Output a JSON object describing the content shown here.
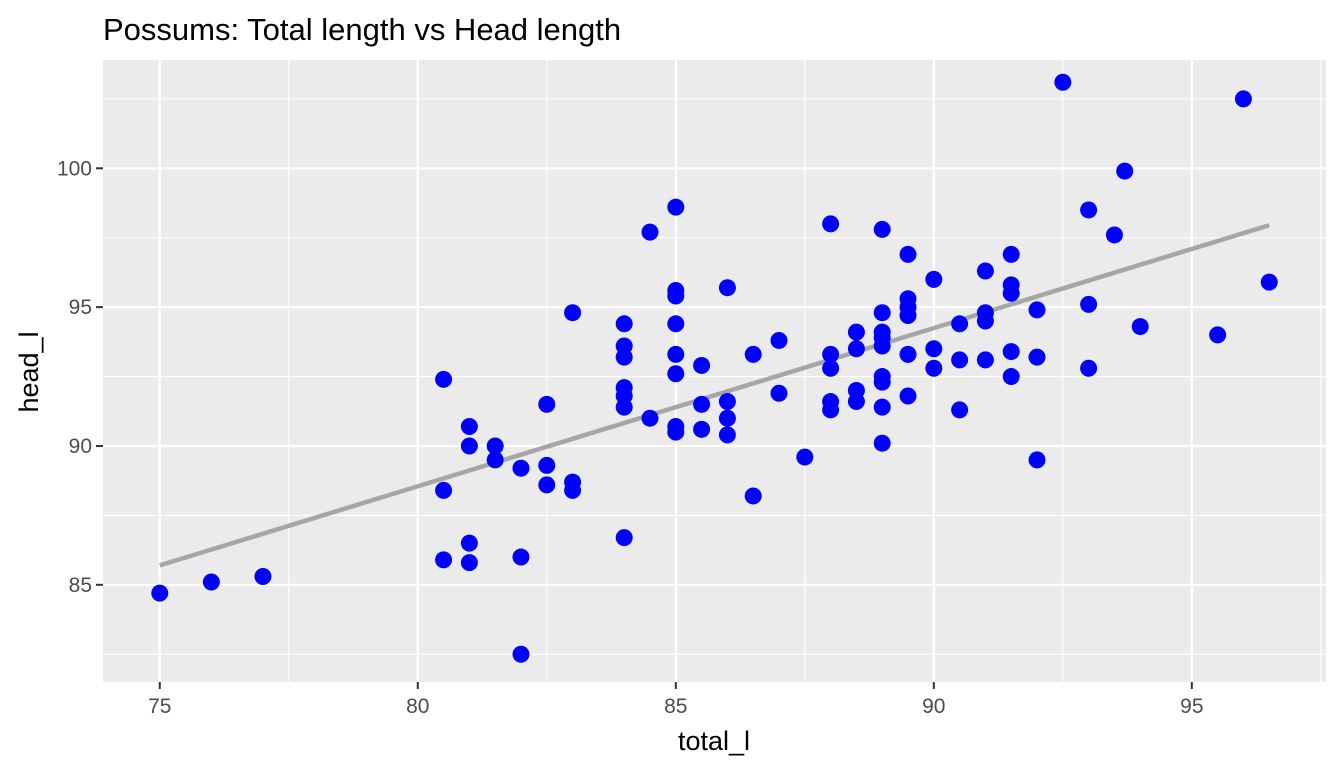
{
  "chart_data": {
    "type": "scatter",
    "title": "Possums: Total length vs Head length",
    "xlabel": "total_l",
    "ylabel": "head_l",
    "xlim": [
      73.9,
      97.6
    ],
    "ylim": [
      81.5,
      103.9
    ],
    "xticks": [
      75,
      80,
      85,
      90,
      95
    ],
    "yticks": [
      85,
      90,
      95,
      100
    ],
    "xtick_labels": [
      "75",
      "80",
      "85",
      "90",
      "95"
    ],
    "ytick_labels": [
      "85",
      "90",
      "95",
      "100"
    ],
    "grid": true,
    "legend": "none",
    "colors": {
      "panel_background": "#ebebeb",
      "grid": "#ffffff",
      "point": "#0000ff",
      "trend_line": "#a6a6a6"
    },
    "series": [
      {
        "values": [
          {
            "x": 75,
            "y": 84.7
          },
          {
            "x": 76,
            "y": 85.1
          },
          {
            "x": 77,
            "y": 85.3
          },
          {
            "x": 80.5,
            "y": 92.4
          },
          {
            "x": 80.5,
            "y": 88.4
          },
          {
            "x": 80.5,
            "y": 85.9
          },
          {
            "x": 81,
            "y": 90.7
          },
          {
            "x": 81,
            "y": 90.0
          },
          {
            "x": 81,
            "y": 86.5
          },
          {
            "x": 81,
            "y": 85.8
          },
          {
            "x": 81.5,
            "y": 90.0
          },
          {
            "x": 81.5,
            "y": 89.5
          },
          {
            "x": 82,
            "y": 89.2
          },
          {
            "x": 82,
            "y": 86.0
          },
          {
            "x": 82,
            "y": 82.5
          },
          {
            "x": 82.5,
            "y": 91.5
          },
          {
            "x": 82.5,
            "y": 89.3
          },
          {
            "x": 82.5,
            "y": 88.6
          },
          {
            "x": 83,
            "y": 94.8
          },
          {
            "x": 83,
            "y": 88.7
          },
          {
            "x": 83,
            "y": 88.4
          },
          {
            "x": 84,
            "y": 94.4
          },
          {
            "x": 84,
            "y": 93.6
          },
          {
            "x": 84,
            "y": 93.2
          },
          {
            "x": 84,
            "y": 92.1
          },
          {
            "x": 84,
            "y": 91.8
          },
          {
            "x": 84,
            "y": 91.4
          },
          {
            "x": 84,
            "y": 86.7
          },
          {
            "x": 84.5,
            "y": 97.7
          },
          {
            "x": 84.5,
            "y": 91.0
          },
          {
            "x": 85,
            "y": 98.6
          },
          {
            "x": 85,
            "y": 95.6
          },
          {
            "x": 85,
            "y": 95.4
          },
          {
            "x": 85,
            "y": 94.4
          },
          {
            "x": 85,
            "y": 93.3
          },
          {
            "x": 85,
            "y": 92.6
          },
          {
            "x": 85,
            "y": 90.7
          },
          {
            "x": 85,
            "y": 90.5
          },
          {
            "x": 85.5,
            "y": 92.9
          },
          {
            "x": 85.5,
            "y": 91.5
          },
          {
            "x": 85.5,
            "y": 90.6
          },
          {
            "x": 86,
            "y": 95.7
          },
          {
            "x": 86,
            "y": 91.6
          },
          {
            "x": 86,
            "y": 91.0
          },
          {
            "x": 86,
            "y": 90.4
          },
          {
            "x": 86.5,
            "y": 93.3
          },
          {
            "x": 86.5,
            "y": 88.2
          },
          {
            "x": 87,
            "y": 93.8
          },
          {
            "x": 87,
            "y": 91.9
          },
          {
            "x": 87.5,
            "y": 89.6
          },
          {
            "x": 88,
            "y": 98.0
          },
          {
            "x": 88,
            "y": 93.3
          },
          {
            "x": 88,
            "y": 92.8
          },
          {
            "x": 88,
            "y": 91.6
          },
          {
            "x": 88,
            "y": 91.3
          },
          {
            "x": 88.5,
            "y": 94.1
          },
          {
            "x": 88.5,
            "y": 93.5
          },
          {
            "x": 88.5,
            "y": 92.0
          },
          {
            "x": 88.5,
            "y": 91.6
          },
          {
            "x": 89,
            "y": 97.8
          },
          {
            "x": 89,
            "y": 94.8
          },
          {
            "x": 89,
            "y": 94.1
          },
          {
            "x": 89,
            "y": 93.9
          },
          {
            "x": 89,
            "y": 93.6
          },
          {
            "x": 89,
            "y": 92.5
          },
          {
            "x": 89,
            "y": 92.3
          },
          {
            "x": 89,
            "y": 91.4
          },
          {
            "x": 89,
            "y": 90.1
          },
          {
            "x": 89.5,
            "y": 96.9
          },
          {
            "x": 89.5,
            "y": 95.3
          },
          {
            "x": 89.5,
            "y": 95.0
          },
          {
            "x": 89.5,
            "y": 94.7
          },
          {
            "x": 89.5,
            "y": 93.3
          },
          {
            "x": 89.5,
            "y": 91.8
          },
          {
            "x": 90,
            "y": 96.0
          },
          {
            "x": 90,
            "y": 93.5
          },
          {
            "x": 90,
            "y": 92.8
          },
          {
            "x": 90.5,
            "y": 94.4
          },
          {
            "x": 90.5,
            "y": 93.1
          },
          {
            "x": 90.5,
            "y": 91.3
          },
          {
            "x": 91,
            "y": 96.3
          },
          {
            "x": 91,
            "y": 94.8
          },
          {
            "x": 91,
            "y": 94.5
          },
          {
            "x": 91,
            "y": 93.1
          },
          {
            "x": 91.5,
            "y": 96.9
          },
          {
            "x": 91.5,
            "y": 95.8
          },
          {
            "x": 91.5,
            "y": 95.5
          },
          {
            "x": 91.5,
            "y": 93.4
          },
          {
            "x": 91.5,
            "y": 92.5
          },
          {
            "x": 92,
            "y": 94.9
          },
          {
            "x": 92,
            "y": 93.2
          },
          {
            "x": 92,
            "y": 89.5
          },
          {
            "x": 92.5,
            "y": 103.1
          },
          {
            "x": 93,
            "y": 98.5
          },
          {
            "x": 93,
            "y": 95.1
          },
          {
            "x": 93,
            "y": 92.8
          },
          {
            "x": 93.5,
            "y": 97.6
          },
          {
            "x": 93.7,
            "y": 99.9
          },
          {
            "x": 94,
            "y": 94.3
          },
          {
            "x": 95.5,
            "y": 94.0
          },
          {
            "x": 96,
            "y": 102.5
          },
          {
            "x": 96.5,
            "y": 95.9
          }
        ]
      }
    ],
    "trend_line": {
      "type": "linear",
      "x": [
        75,
        96.5
      ],
      "y": [
        85.7,
        97.95
      ]
    }
  }
}
